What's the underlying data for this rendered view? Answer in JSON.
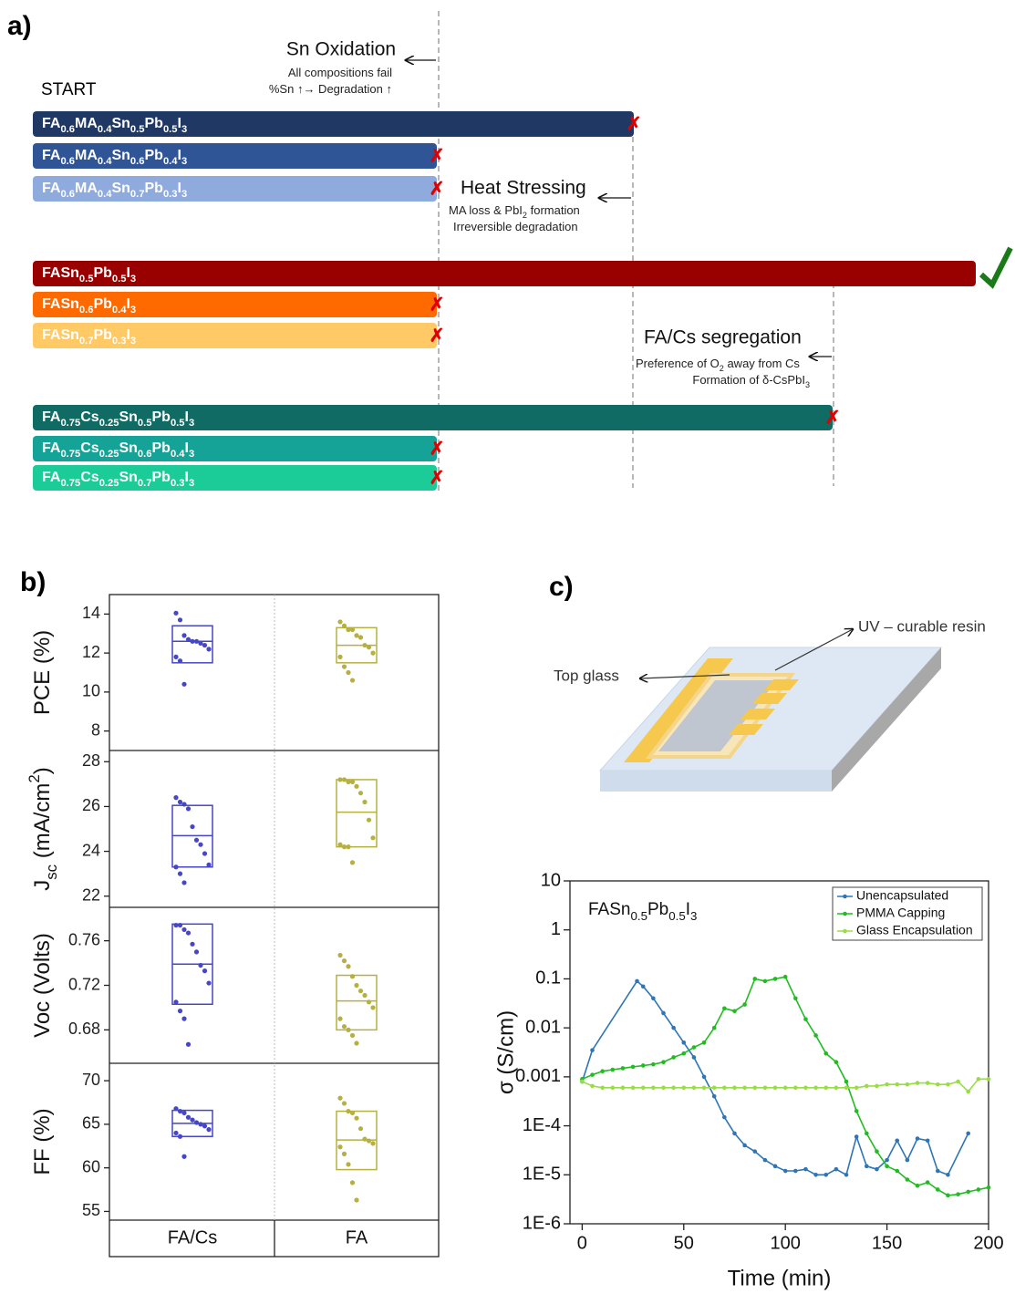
{
  "panel_labels": [
    "a)",
    "b)",
    "c)"
  ],
  "panel_a": {
    "start": "START",
    "events": [
      {
        "title": "Sn Oxidation",
        "notes": [
          [
            {
              "text": "All compositions fail"
            }
          ],
          [
            {
              "text": "%Sn ↑→ Degradation ↑"
            }
          ]
        ]
      },
      {
        "title": "Heat Stressing",
        "notes": [
          [
            {
              "text": "MA loss & PbI"
            },
            {
              "sub": "2"
            },
            {
              "text": " formation"
            }
          ],
          [
            {
              "text": "Irreversible degradation"
            }
          ]
        ]
      },
      {
        "title": "FA/Cs segregation",
        "notes": [
          [
            {
              "text": "Preference of O"
            },
            {
              "sub": "2"
            },
            {
              "text": " away from Cs"
            }
          ],
          [
            {
              "text": "Formation of δ-CsPbI"
            },
            {
              "sub": "3"
            }
          ]
        ]
      }
    ],
    "bars": [
      {
        "color": "#1f3864",
        "label": [
          {
            "text": "FA"
          },
          {
            "sub": "0.6"
          },
          {
            "text": "MA"
          },
          {
            "sub": "0.4"
          },
          {
            "text": "Sn"
          },
          {
            "sub": "0.5"
          },
          {
            "text": "Pb"
          },
          {
            "sub": "0.5"
          },
          {
            "text": "I"
          },
          {
            "sub": "3"
          }
        ]
      },
      {
        "color": "#2f5597",
        "label": [
          {
            "text": "FA"
          },
          {
            "sub": "0.6"
          },
          {
            "text": "MA"
          },
          {
            "sub": "0.4"
          },
          {
            "text": "Sn"
          },
          {
            "sub": "0.6"
          },
          {
            "text": "Pb"
          },
          {
            "sub": "0.4"
          },
          {
            "text": "I"
          },
          {
            "sub": "3"
          }
        ]
      },
      {
        "color": "#8faadc",
        "label": [
          {
            "text": "FA"
          },
          {
            "sub": "0.6"
          },
          {
            "text": "MA"
          },
          {
            "sub": "0.4"
          },
          {
            "text": "Sn"
          },
          {
            "sub": "0.7"
          },
          {
            "text": "Pb"
          },
          {
            "sub": "0.3"
          },
          {
            "text": "I"
          },
          {
            "sub": "3"
          }
        ]
      },
      {
        "color": "#990000",
        "label": [
          {
            "text": "FASn"
          },
          {
            "sub": "0.5"
          },
          {
            "text": "Pb"
          },
          {
            "sub": "0.5"
          },
          {
            "text": "I"
          },
          {
            "sub": "3"
          }
        ]
      },
      {
        "color": "#ff6a00",
        "label": [
          {
            "text": "FASn"
          },
          {
            "sub": "0.6"
          },
          {
            "text": "Pb"
          },
          {
            "sub": "0.4"
          },
          {
            "text": "I"
          },
          {
            "sub": "3"
          }
        ]
      },
      {
        "color": "#ffc966",
        "label": [
          {
            "text": "FASn"
          },
          {
            "sub": "0.7"
          },
          {
            "text": "Pb"
          },
          {
            "sub": "0.3"
          },
          {
            "text": "I"
          },
          {
            "sub": "3"
          }
        ]
      },
      {
        "color": "#0f6b63",
        "label": [
          {
            "text": "FA"
          },
          {
            "sub": "0.75"
          },
          {
            "text": "Cs"
          },
          {
            "sub": "0.25"
          },
          {
            "text": "Sn"
          },
          {
            "sub": "0.5"
          },
          {
            "text": "Pb"
          },
          {
            "sub": "0.5"
          },
          {
            "text": "I"
          },
          {
            "sub": "3"
          }
        ]
      },
      {
        "color": "#15a398",
        "label": [
          {
            "text": "FA"
          },
          {
            "sub": "0.75"
          },
          {
            "text": "Cs"
          },
          {
            "sub": "0.25"
          },
          {
            "text": "Sn"
          },
          {
            "sub": "0.6"
          },
          {
            "text": "Pb"
          },
          {
            "sub": "0.4"
          },
          {
            "text": "I"
          },
          {
            "sub": "3"
          }
        ]
      },
      {
        "color": "#1ccc98",
        "label": [
          {
            "text": "FA"
          },
          {
            "sub": "0.75"
          },
          {
            "text": "Cs"
          },
          {
            "sub": "0.25"
          },
          {
            "text": "Sn"
          },
          {
            "sub": "0.7"
          },
          {
            "text": "Pb"
          },
          {
            "sub": "0.3"
          },
          {
            "text": "I"
          },
          {
            "sub": "3"
          }
        ]
      }
    ]
  },
  "diagram": {
    "top_glass": "Top glass",
    "resin": "UV – curable resin"
  },
  "chart_data": [
    {
      "type": "box",
      "ylabel": [
        {
          "text": "PCE (%)"
        }
      ],
      "ylim": [
        7,
        15
      ],
      "yticks": [
        8,
        10,
        12,
        14
      ],
      "colors": [
        "#4646c8",
        "#b5b040"
      ],
      "boxes": [
        {
          "q1": 11.5,
          "median": 12.6,
          "q3": 13.4,
          "points": [
            14.05,
            13.7,
            12.9,
            12.7,
            12.6,
            12.6,
            12.5,
            12.4,
            12.2,
            11.8,
            11.6,
            10.4
          ]
        },
        {
          "q1": 11.5,
          "median": 12.4,
          "q3": 13.3,
          "points": [
            13.6,
            13.4,
            13.2,
            13.2,
            12.9,
            12.8,
            12.4,
            12.3,
            12.0,
            11.8,
            11.3,
            11.0,
            10.6
          ]
        }
      ]
    },
    {
      "type": "box",
      "ylabel": [
        {
          "text": "J"
        },
        {
          "sub": "sc"
        },
        {
          "text": " (mA/cm"
        },
        {
          "sup": "2"
        },
        {
          "text": ")"
        }
      ],
      "ylim": [
        21.5,
        28.5
      ],
      "yticks": [
        22,
        24,
        26,
        28
      ],
      "colors": [
        "#4646c8",
        "#b5b040"
      ],
      "boxes": [
        {
          "q1": 23.3,
          "median": 24.7,
          "q3": 26.05,
          "points": [
            26.4,
            26.2,
            26.1,
            25.9,
            25.1,
            24.5,
            24.3,
            23.9,
            23.4,
            23.3,
            23.0,
            22.6
          ]
        },
        {
          "q1": 24.2,
          "median": 25.75,
          "q3": 27.2,
          "points": [
            27.2,
            27.2,
            27.1,
            27.1,
            26.9,
            26.6,
            26.2,
            25.4,
            24.6,
            24.3,
            24.2,
            24.2,
            23.5
          ]
        }
      ]
    },
    {
      "type": "box",
      "ylabel": [
        {
          "text": "Voc (Volts)"
        }
      ],
      "ylim": [
        0.65,
        0.79
      ],
      "yticks": [
        0.68,
        0.72,
        0.76
      ],
      "colors": [
        "#4646c8",
        "#b5b040"
      ],
      "boxes": [
        {
          "q1": 0.703,
          "median": 0.739,
          "q3": 0.775,
          "points": [
            0.774,
            0.774,
            0.77,
            0.767,
            0.757,
            0.75,
            0.738,
            0.733,
            0.722,
            0.705,
            0.697,
            0.69,
            0.667
          ]
        },
        {
          "q1": 0.68,
          "median": 0.706,
          "q3": 0.729,
          "points": [
            0.747,
            0.742,
            0.737,
            0.728,
            0.72,
            0.715,
            0.711,
            0.705,
            0.7,
            0.69,
            0.683,
            0.68,
            0.675,
            0.668
          ]
        }
      ]
    },
    {
      "type": "box",
      "ylabel": [
        {
          "text": "FF (%)"
        }
      ],
      "ylim": [
        54,
        72
      ],
      "yticks": [
        55,
        60,
        65,
        70
      ],
      "colors": [
        "#4646c8",
        "#b5b040"
      ],
      "categories": [
        "FA/Cs",
        "FA"
      ],
      "boxes": [
        {
          "q1": 63.6,
          "median": 65.1,
          "q3": 66.6,
          "points": [
            66.8,
            66.5,
            66.3,
            65.8,
            65.5,
            65.2,
            65.0,
            64.8,
            64.4,
            64.0,
            63.6,
            61.3
          ]
        },
        {
          "q1": 59.8,
          "median": 63.2,
          "q3": 66.5,
          "points": [
            68.0,
            67.4,
            66.5,
            66.3,
            65.7,
            64.5,
            63.3,
            63.1,
            62.8,
            62.4,
            61.6,
            60.4,
            58.3,
            56.3
          ]
        }
      ]
    },
    {
      "type": "line",
      "xlabel": "Time (min)",
      "ylabel": "σ (S/cm)",
      "log_y": true,
      "legend": "upper right",
      "annotation": [
        {
          "text": "FASn"
        },
        {
          "sub": "0.5"
        },
        {
          "text": "Pb"
        },
        {
          "sub": "0.5"
        },
        {
          "text": "I"
        },
        {
          "sub": "3"
        }
      ],
      "xlim": [
        -6,
        200
      ],
      "xticks": [
        0,
        50,
        100,
        150,
        200
      ],
      "ylim": [
        1e-06,
        10
      ],
      "yticks": [
        {
          "value": 1e-06,
          "label": "1E-6"
        },
        {
          "value": 1e-05,
          "label": "1E-5"
        },
        {
          "value": 0.0001,
          "label": "1E-4"
        },
        0.001,
        0.01,
        0.1,
        1,
        10
      ],
      "series": [
        {
          "name": "Unencapsulated",
          "color": "#2e75b6",
          "x": [
            0,
            5,
            27,
            30,
            35,
            40,
            45,
            50,
            55,
            60,
            65,
            70,
            75,
            80,
            85,
            90,
            95,
            100,
            105,
            110,
            115,
            120,
            125,
            130,
            135,
            140,
            145,
            150,
            155,
            160,
            165,
            170,
            175,
            180,
            190
          ],
          "values": [
            0.0008,
            0.0035,
            0.09,
            0.07,
            0.04,
            0.02,
            0.01,
            0.005,
            0.0025,
            0.001,
            0.0004,
            0.00015,
            7e-05,
            4e-05,
            3e-05,
            2e-05,
            1.5e-05,
            1.2e-05,
            1.2e-05,
            1.3e-05,
            1e-05,
            1e-05,
            1.3e-05,
            1e-05,
            6e-05,
            1.5e-05,
            1.3e-05,
            2e-05,
            5e-05,
            2e-05,
            5.5e-05,
            5e-05,
            1.2e-05,
            1e-05,
            7e-05
          ]
        },
        {
          "name": "PMMA Capping",
          "color": "#22bb22",
          "x": [
            0,
            5,
            10,
            15,
            20,
            25,
            30,
            35,
            40,
            45,
            50,
            55,
            60,
            65,
            70,
            75,
            80,
            85,
            90,
            95,
            100,
            105,
            110,
            115,
            120,
            125,
            130,
            135,
            140,
            145,
            150,
            155,
            160,
            165,
            170,
            175,
            180,
            185,
            190,
            195,
            200
          ],
          "values": [
            0.0009,
            0.0011,
            0.0013,
            0.0014,
            0.0015,
            0.0016,
            0.0017,
            0.0018,
            0.002,
            0.0025,
            0.003,
            0.004,
            0.005,
            0.01,
            0.025,
            0.022,
            0.03,
            0.1,
            0.09,
            0.1,
            0.11,
            0.04,
            0.015,
            0.007,
            0.003,
            0.002,
            0.0008,
            0.0002,
            7e-05,
            3e-05,
            1.5e-05,
            1.2e-05,
            8e-06,
            6e-06,
            7e-06,
            5e-06,
            3.8e-06,
            4e-06,
            4.5e-06,
            5e-06,
            5.5e-06
          ]
        },
        {
          "name": "Glass Encapsulation",
          "color": "#99dd44",
          "x": [
            0,
            5,
            10,
            15,
            20,
            25,
            30,
            35,
            40,
            45,
            50,
            55,
            60,
            65,
            70,
            75,
            80,
            85,
            90,
            95,
            100,
            105,
            110,
            115,
            120,
            125,
            130,
            135,
            140,
            145,
            150,
            155,
            160,
            165,
            170,
            175,
            180,
            185,
            190,
            195,
            200
          ],
          "values": [
            0.0008,
            0.00065,
            0.0006,
            0.0006,
            0.0006,
            0.0006,
            0.0006,
            0.0006,
            0.0006,
            0.0006,
            0.0006,
            0.0006,
            0.0006,
            0.0006,
            0.0006,
            0.0006,
            0.0006,
            0.0006,
            0.0006,
            0.0006,
            0.0006,
            0.0006,
            0.0006,
            0.0006,
            0.0006,
            0.0006,
            0.0006,
            0.0006,
            0.00065,
            0.00065,
            0.0007,
            0.0007,
            0.0007,
            0.00075,
            0.00075,
            0.0007,
            0.0007,
            0.0008,
            0.0005,
            0.0009,
            0.0009
          ]
        }
      ]
    }
  ]
}
